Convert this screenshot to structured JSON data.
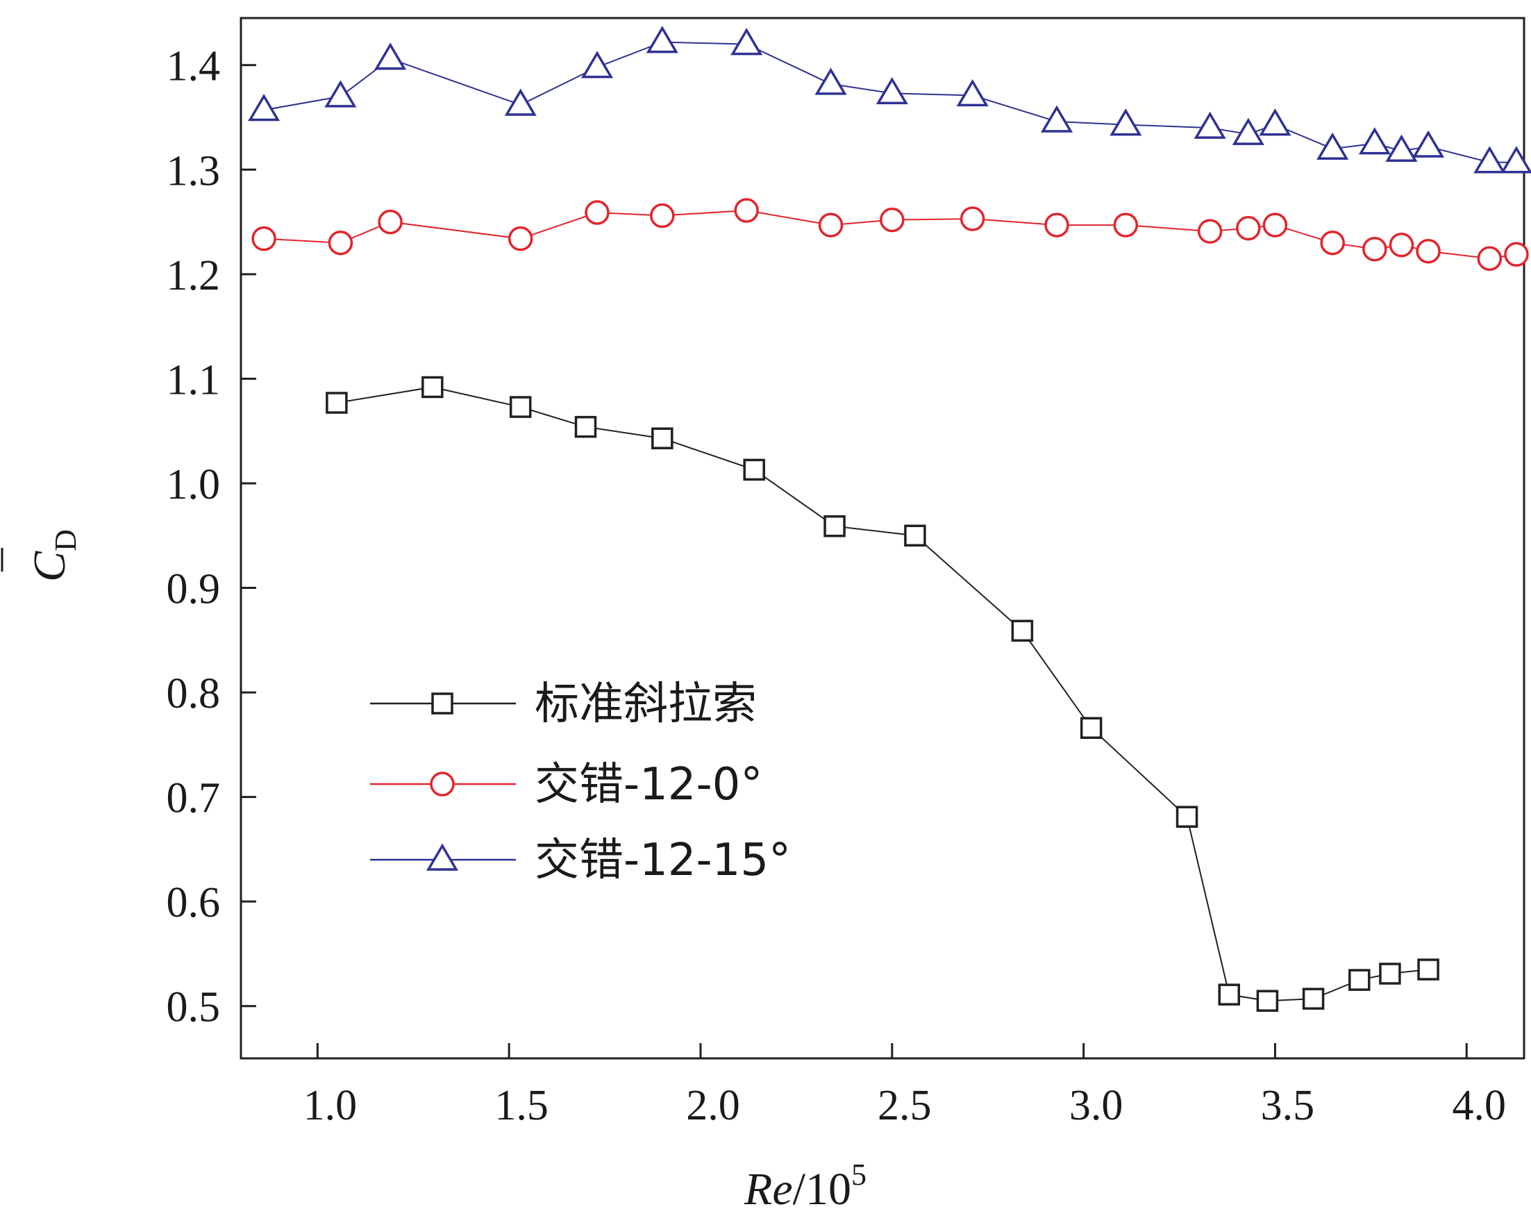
{
  "chart_data": {
    "type": "line",
    "xlabel": {
      "italic": "Re",
      "plain": "/10",
      "sup": "5"
    },
    "ylabel": {
      "main": "C",
      "sub": "D",
      "accent": "¯"
    },
    "xlim": [
      0.8,
      4.15
    ],
    "ylim": [
      0.45,
      1.445
    ],
    "xticks": [
      {
        "value": 1.0,
        "label": "1.0"
      },
      {
        "value": 1.5,
        "label": "1.5"
      },
      {
        "value": 2.0,
        "label": "2.0"
      },
      {
        "value": 2.5,
        "label": "2.5"
      },
      {
        "value": 3.0,
        "label": "3.0"
      },
      {
        "value": 3.5,
        "label": "3.5"
      },
      {
        "value": 4.0,
        "label": "4.0"
      }
    ],
    "yticks": [
      {
        "value": 0.5,
        "label": "0.5"
      },
      {
        "value": 0.6,
        "label": "0.6"
      },
      {
        "value": 0.7,
        "label": "0.7"
      },
      {
        "value": 0.8,
        "label": "0.8"
      },
      {
        "value": 0.9,
        "label": "0.9"
      },
      {
        "value": 1.0,
        "label": "1.0"
      },
      {
        "value": 1.1,
        "label": "1.1"
      },
      {
        "value": 1.2,
        "label": "1.2"
      },
      {
        "value": 1.3,
        "label": "1.3"
      },
      {
        "value": 1.4,
        "label": "1.4"
      }
    ],
    "grid": false,
    "legend_position": "lower-left",
    "series": [
      {
        "name": "标准斜拉索",
        "marker": "square",
        "color": "#231f20",
        "x": [
          1.05,
          1.3,
          1.53,
          1.7,
          1.9,
          2.14,
          2.35,
          2.56,
          2.84,
          3.02,
          3.27,
          3.38,
          3.48,
          3.6,
          3.72,
          3.8,
          3.9
        ],
        "y": [
          1.077,
          1.092,
          1.073,
          1.054,
          1.043,
          1.013,
          0.959,
          0.95,
          0.859,
          0.766,
          0.681,
          0.511,
          0.505,
          0.507,
          0.525,
          0.531,
          0.535
        ]
      },
      {
        "name": "交错-12-0°",
        "marker": "circle",
        "color": "#e2242c",
        "x": [
          0.86,
          1.06,
          1.19,
          1.53,
          1.73,
          1.9,
          2.12,
          2.34,
          2.5,
          2.71,
          2.93,
          3.11,
          3.33,
          3.43,
          3.5,
          3.65,
          3.76,
          3.83,
          3.9,
          4.06,
          4.13
        ],
        "y": [
          1.234,
          1.23,
          1.25,
          1.234,
          1.259,
          1.256,
          1.261,
          1.247,
          1.252,
          1.253,
          1.247,
          1.247,
          1.241,
          1.244,
          1.247,
          1.23,
          1.224,
          1.228,
          1.222,
          1.215,
          1.219
        ]
      },
      {
        "name": "交错-12-15°",
        "marker": "triangle",
        "color": "#2e3192",
        "x": [
          0.86,
          1.06,
          1.19,
          1.53,
          1.73,
          1.9,
          2.12,
          2.34,
          2.5,
          2.71,
          2.93,
          3.11,
          3.33,
          3.43,
          3.5,
          3.65,
          3.76,
          3.83,
          3.9,
          4.06,
          4.13
        ],
        "y": [
          1.357,
          1.37,
          1.406,
          1.362,
          1.398,
          1.422,
          1.42,
          1.382,
          1.373,
          1.371,
          1.346,
          1.343,
          1.34,
          1.334,
          1.343,
          1.32,
          1.325,
          1.318,
          1.322,
          1.307,
          1.307
        ]
      }
    ]
  }
}
